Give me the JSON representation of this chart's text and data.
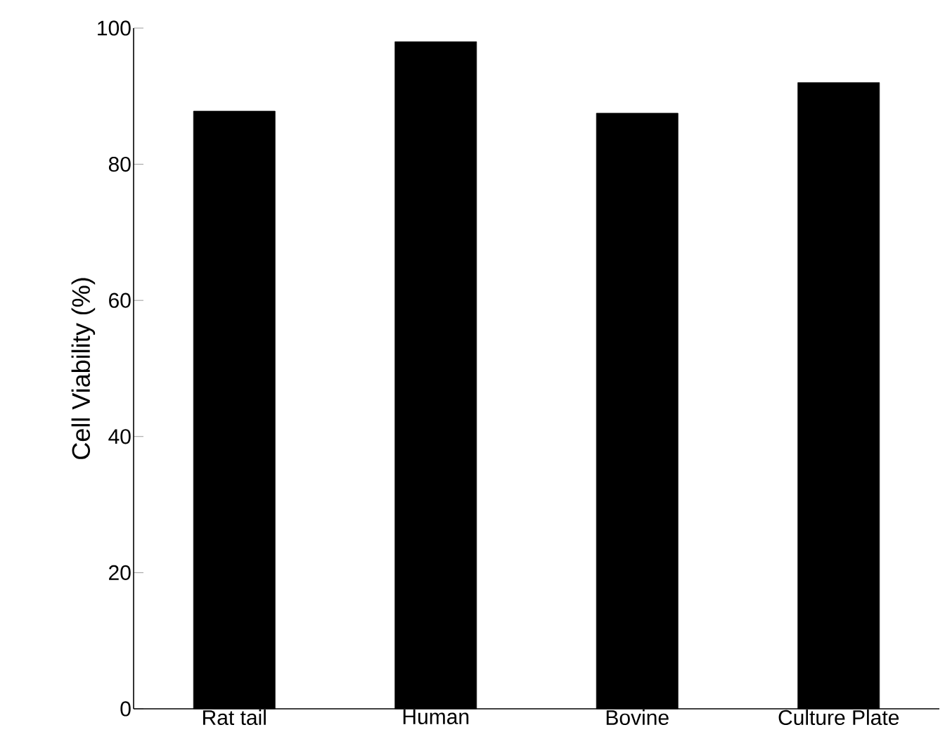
{
  "chart_data": {
    "type": "bar",
    "ylabel": "Cell Viability (%)",
    "categories": [
      "Rat tail",
      "Human",
      "Bovine",
      "Culture Plate"
    ],
    "values": [
      87.8,
      98.0,
      87.5,
      92.0
    ],
    "color": "#000000",
    "ylim": [
      0,
      100
    ],
    "yticks": [
      0,
      20,
      40,
      60,
      80,
      100
    ],
    "grid": false
  }
}
